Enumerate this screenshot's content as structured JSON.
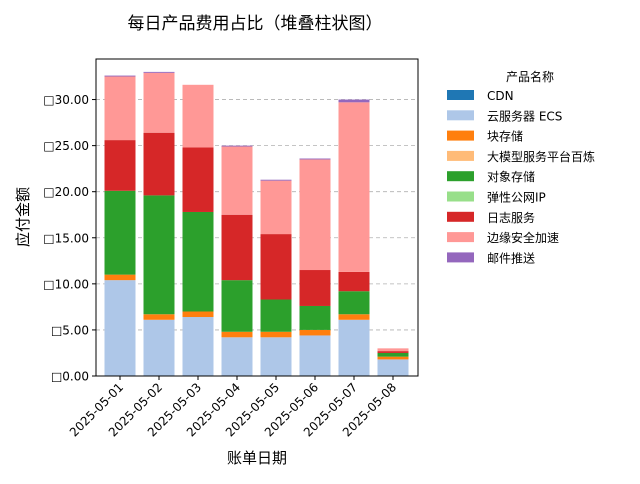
{
  "chart_data": {
    "type": "bar",
    "stacked": true,
    "title": "每日产品费用占比（堆叠柱状图）",
    "xlabel": "账单日期",
    "ylabel": "应付金额",
    "categories": [
      "2025-05-01",
      "2025-05-02",
      "2025-05-03",
      "2025-05-04",
      "2025-05-05",
      "2025-05-06",
      "2025-05-07",
      "2025-05-08"
    ],
    "ylim": [
      0,
      34.4
    ],
    "yticks": [
      0,
      5,
      10,
      15,
      20,
      25,
      30
    ],
    "ytick_labels": [
      "□0.00",
      "□5.00",
      "□10.00",
      "□15.00",
      "□20.00",
      "□25.00",
      "□30.00"
    ],
    "grid": "y-dashed",
    "legend": {
      "title": "产品名称",
      "position": "outside-right"
    },
    "series": [
      {
        "name": "CDN",
        "color": "#1f77b4",
        "values": [
          0.0,
          0.0,
          0.0,
          0.0,
          0.0,
          0.0,
          0.0,
          0.0
        ]
      },
      {
        "name": "云服务器 ECS",
        "color": "#aec7e8",
        "values": [
          10.4,
          6.1,
          6.4,
          4.2,
          4.2,
          4.4,
          6.1,
          1.8
        ]
      },
      {
        "name": "块存储",
        "color": "#ff7f0e",
        "values": [
          0.6,
          0.6,
          0.6,
          0.6,
          0.6,
          0.6,
          0.6,
          0.3
        ]
      },
      {
        "name": "大模型服务平台百炼",
        "color": "#ffbb78",
        "values": [
          0.0,
          0.0,
          0.0,
          0.0,
          0.0,
          0.0,
          0.0,
          0.0
        ]
      },
      {
        "name": "对象存储",
        "color": "#2ca02c",
        "values": [
          9.1,
          12.9,
          10.8,
          5.6,
          3.5,
          2.6,
          2.5,
          0.4
        ]
      },
      {
        "name": "弹性公网IP",
        "color": "#98df8a",
        "values": [
          0.0,
          0.0,
          0.0,
          0.0,
          0.0,
          0.0,
          0.0,
          0.0
        ]
      },
      {
        "name": "日志服务",
        "color": "#d62728",
        "values": [
          5.5,
          6.8,
          7.0,
          7.1,
          7.1,
          3.9,
          2.1,
          0.2
        ]
      },
      {
        "name": "边缘安全加速",
        "color": "#ff9896",
        "values": [
          6.9,
          6.5,
          6.8,
          7.4,
          5.8,
          12.0,
          18.4,
          0.3
        ]
      },
      {
        "name": "邮件推送",
        "color": "#9467bd",
        "values": [
          0.1,
          0.1,
          0.0,
          0.1,
          0.1,
          0.1,
          0.3,
          0.0
        ]
      }
    ]
  }
}
